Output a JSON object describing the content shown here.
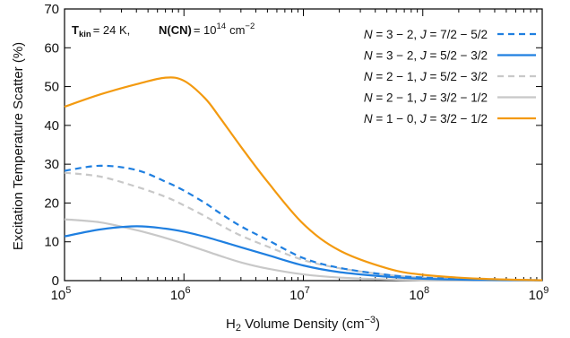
{
  "chart_data": {
    "type": "line",
    "title": "",
    "annotation": {
      "tkin_main": "T",
      "tkin_sub": "kin",
      "tkin_value": "= 24 K,",
      "ncn_label": "N(CN)",
      "ncn_value": "= 10",
      "ncn_exp": "14",
      "ncn_unit": "cm",
      "ncn_unit_exp": "−2"
    },
    "xlabel": {
      "prefix": "H",
      "sub": "2",
      "middle": " Volume Density (cm",
      "sup": "−3",
      "suffix": ")"
    },
    "ylabel": "Excitation Temperature Scatter (%)",
    "xscale": "log",
    "xlim": [
      100000,
      1000000000
    ],
    "ylim": [
      0,
      70
    ],
    "x_ticks": [
      {
        "base": "10",
        "exp": "5",
        "value": 100000
      },
      {
        "base": "10",
        "exp": "6",
        "value": 1000000
      },
      {
        "base": "10",
        "exp": "7",
        "value": 10000000
      },
      {
        "base": "10",
        "exp": "8",
        "value": 100000000
      },
      {
        "base": "10",
        "exp": "9",
        "value": 1000000000
      }
    ],
    "y_ticks": [
      "0",
      "10",
      "20",
      "30",
      "40",
      "50",
      "60",
      "70"
    ],
    "legend_position": "top-right",
    "x": [
      100000,
      200000,
      400000,
      700000,
      1000000,
      1500000,
      2000000,
      3000000,
      5000000,
      10000000,
      20000000,
      50000000,
      100000000,
      300000000,
      1000000000
    ],
    "series": [
      {
        "name": "N = 3 − 2, J = 7/2 − 5/2",
        "legend_parts": [
          "N",
          " = 3 − 2, ",
          "J",
          " = 7/2 − 5/2"
        ],
        "color": "#1f7fe0",
        "dash": "dashed",
        "values": [
          28.3,
          29.6,
          28.5,
          25.5,
          23.2,
          20.0,
          17.4,
          14.0,
          10.5,
          5.8,
          3.3,
          1.5,
          0.8,
          0.3,
          0.1
        ]
      },
      {
        "name": "N = 3 − 2, J = 5/2 − 3/2",
        "legend_parts": [
          "N",
          " = 3 − 2, ",
          "J",
          " = 5/2 − 3/2"
        ],
        "color": "#1f7fe0",
        "dash": "solid",
        "values": [
          11.4,
          13.2,
          14.0,
          13.4,
          12.6,
          11.3,
          10.2,
          8.6,
          6.6,
          3.9,
          2.2,
          1.0,
          0.5,
          0.2,
          0.1
        ]
      },
      {
        "name": "N = 2 − 1, J = 5/2 − 3/2",
        "legend_parts": [
          "N",
          " = 2 − 1, ",
          "J",
          " = 5/2 − 3/2"
        ],
        "color": "#c8c8c8",
        "dash": "dashed",
        "values": [
          27.8,
          26.8,
          24.2,
          21.6,
          19.4,
          16.6,
          14.4,
          11.6,
          8.8,
          5.3,
          3.2,
          1.5,
          0.8,
          0.3,
          0.1
        ]
      },
      {
        "name": "N = 2 − 1, J = 3/2 − 1/2",
        "legend_parts": [
          "N",
          " = 2 − 1, ",
          "J",
          " = 3/2 − 1/2"
        ],
        "color": "#c8c8c8",
        "dash": "solid",
        "values": [
          15.8,
          15.0,
          13.0,
          11.0,
          9.5,
          7.7,
          6.4,
          4.7,
          3.1,
          1.6,
          0.8,
          0.3,
          0.15,
          0.05,
          0.0
        ]
      },
      {
        "name": "N = 1 − 0, J = 3/2 − 1/2",
        "legend_parts": [
          "N",
          " = 1 − 0, ",
          "J",
          " = 3/2 − 1/2"
        ],
        "color": "#f39a10",
        "dash": "solid",
        "values": [
          44.8,
          48.0,
          50.6,
          52.3,
          51.5,
          47.0,
          42.0,
          34.5,
          25.5,
          14.6,
          7.8,
          3.2,
          1.5,
          0.5,
          0.1
        ]
      }
    ]
  }
}
